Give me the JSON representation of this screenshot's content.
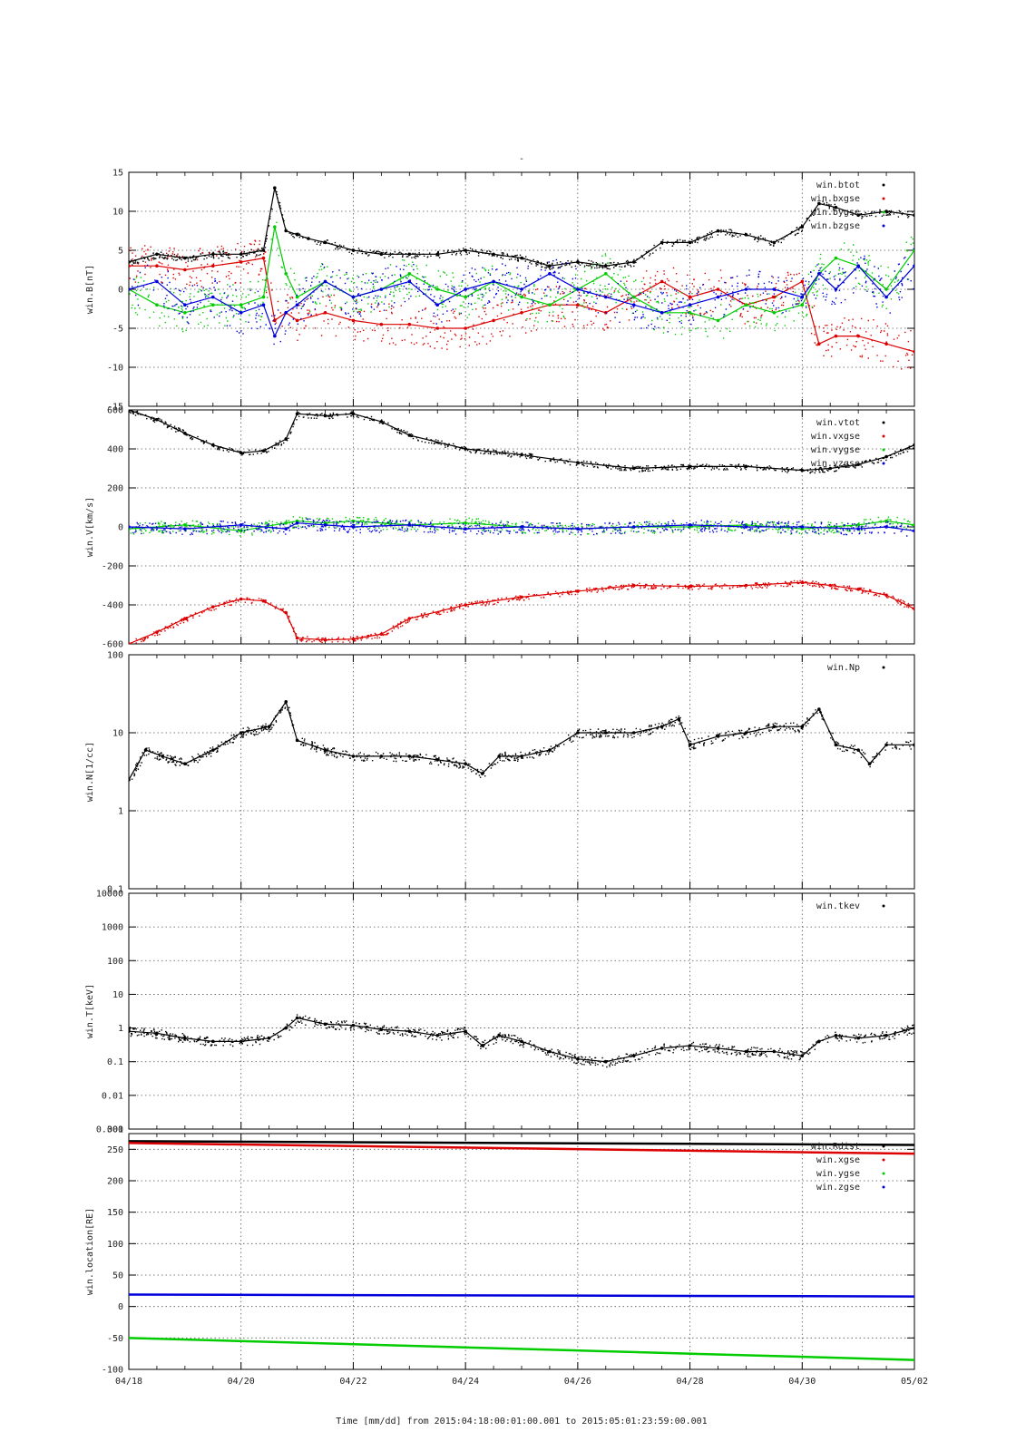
{
  "title": "-",
  "x_axis": {
    "tick_labels": [
      "04/18",
      "04/20",
      "04/22",
      "04/24",
      "04/26",
      "04/28",
      "04/30",
      "05/02"
    ],
    "tick_days": [
      0,
      2,
      4,
      6,
      8,
      10,
      12,
      14
    ],
    "title": "Time [mm/dd]  from 2015:04:18:00:01:00.001  to  2015:05:01:23:59:00.001"
  },
  "colors": {
    "black": "#000000",
    "red": "#dd0000",
    "green": "#00cc00",
    "blue": "#0000dd"
  },
  "chart_data": [
    {
      "type": "scatter",
      "ylabel": "win.B[nT]",
      "ylim": [
        -15,
        15
      ],
      "yscale": "linear",
      "yticks": [
        -15,
        -10,
        -5,
        0,
        5,
        10,
        15
      ],
      "ytick_labels": [
        "-15",
        "-10",
        "-5",
        "0",
        "5",
        "10",
        "15"
      ],
      "grid": true,
      "legend_position": "top-right",
      "x_unit": "days since 04/18",
      "series": [
        {
          "name": "win.btot",
          "color": "black",
          "x": [
            0,
            0.5,
            1,
            1.5,
            2,
            2.4,
            2.6,
            2.8,
            3,
            3.2,
            3.5,
            4,
            4.5,
            5,
            5.5,
            6,
            6.5,
            7,
            7.5,
            8,
            8.5,
            9,
            9.5,
            10,
            10.5,
            11,
            11.5,
            12,
            12.3,
            12.6,
            13,
            13.5,
            14
          ],
          "y": [
            3.5,
            4.5,
            4,
            4.5,
            4.5,
            5,
            13,
            7.5,
            7,
            6.5,
            6,
            5,
            4.5,
            4.5,
            4.5,
            5,
            4.5,
            4,
            3,
            3.5,
            3,
            3.5,
            6,
            6,
            7.5,
            7,
            6,
            8,
            11,
            10.5,
            9.5,
            10,
            9.5
          ]
        },
        {
          "name": "win.bxgse",
          "color": "red",
          "x": [
            0,
            0.5,
            1,
            1.5,
            2,
            2.4,
            2.6,
            2.8,
            3,
            3.5,
            4,
            4.5,
            5,
            5.5,
            6,
            6.5,
            7,
            7.5,
            8,
            8.5,
            9,
            9.5,
            10,
            10.5,
            11,
            11.5,
            12,
            12.3,
            12.6,
            13,
            13.5,
            14
          ],
          "y": [
            3,
            3,
            2.5,
            3,
            3.5,
            4,
            -4,
            -3,
            -4,
            -3,
            -4,
            -4.5,
            -4.5,
            -5,
            -5,
            -4,
            -3,
            -2,
            -2,
            -3,
            -1,
            1,
            -1,
            0,
            -2,
            -1,
            1,
            -7,
            -6,
            -6,
            -7,
            -8
          ]
        },
        {
          "name": "win.bygse",
          "color": "green",
          "x": [
            0,
            0.5,
            1,
            1.5,
            2,
            2.4,
            2.6,
            2.8,
            3,
            3.5,
            4,
            4.5,
            5,
            5.5,
            6,
            6.5,
            7,
            7.5,
            8,
            8.5,
            9,
            9.5,
            10,
            10.5,
            11,
            11.5,
            12,
            12.3,
            12.6,
            13,
            13.5,
            14
          ],
          "y": [
            0,
            -2,
            -3,
            -2,
            -2,
            -1,
            8,
            2,
            -1,
            1,
            -1,
            0,
            2,
            0,
            -1,
            1,
            -1,
            -2,
            0,
            2,
            -1,
            -3,
            -3,
            -4,
            -2,
            -3,
            -2,
            2,
            4,
            3,
            0,
            5
          ]
        },
        {
          "name": "win.bzgse",
          "color": "blue",
          "x": [
            0,
            0.5,
            1,
            1.5,
            2,
            2.4,
            2.6,
            2.8,
            3,
            3.5,
            4,
            4.5,
            5,
            5.5,
            6,
            6.5,
            7,
            7.5,
            8,
            8.5,
            9,
            9.5,
            10,
            10.5,
            11,
            11.5,
            12,
            12.3,
            12.6,
            13,
            13.5,
            14
          ],
          "y": [
            0,
            1,
            -2,
            -1,
            -3,
            -2,
            -6,
            -3,
            -2,
            1,
            -1,
            0,
            1,
            -2,
            0,
            1,
            0,
            2,
            0,
            -1,
            -2,
            -3,
            -2,
            -1,
            0,
            0,
            -1,
            2,
            0,
            3,
            -1,
            3
          ]
        }
      ]
    },
    {
      "type": "scatter",
      "ylabel": "win.V[km/s]",
      "ylim": [
        -600,
        600
      ],
      "yscale": "linear",
      "yticks": [
        -600,
        -400,
        -200,
        0,
        200,
        400,
        600
      ],
      "ytick_labels": [
        "-600",
        "-400",
        "-200",
        "0",
        "200",
        "400",
        "600"
      ],
      "grid": true,
      "legend_position": "top-right",
      "x_unit": "days since 04/18",
      "series": [
        {
          "name": "win.vtot",
          "color": "black",
          "x": [
            0,
            0.5,
            1,
            1.5,
            2,
            2.4,
            2.8,
            3,
            3.5,
            4,
            4.5,
            5,
            6,
            7,
            8,
            9,
            10,
            11,
            12,
            12.5,
            13,
            13.5,
            14
          ],
          "y": [
            600,
            550,
            480,
            420,
            380,
            390,
            450,
            580,
            570,
            580,
            540,
            470,
            400,
            370,
            330,
            300,
            310,
            310,
            290,
            300,
            320,
            360,
            420
          ]
        },
        {
          "name": "win.vxgse",
          "color": "red",
          "x": [
            0,
            0.5,
            1,
            1.5,
            2,
            2.4,
            2.8,
            3,
            3.5,
            4,
            4.5,
            5,
            6,
            7,
            8,
            9,
            10,
            11,
            12,
            12.5,
            13,
            13.5,
            14
          ],
          "y": [
            -600,
            -540,
            -470,
            -410,
            -370,
            -380,
            -440,
            -570,
            -580,
            -575,
            -550,
            -470,
            -400,
            -360,
            -330,
            -300,
            -305,
            -300,
            -285,
            -300,
            -320,
            -350,
            -420
          ]
        },
        {
          "name": "win.vygse",
          "color": "green",
          "x": [
            0,
            1,
            2,
            2.8,
            3,
            3.5,
            4,
            5,
            6,
            7,
            8,
            9,
            10,
            11,
            12,
            13,
            13.5,
            14
          ],
          "y": [
            -10,
            10,
            -20,
            20,
            30,
            20,
            30,
            10,
            20,
            0,
            -10,
            0,
            0,
            10,
            -10,
            10,
            30,
            10
          ]
        },
        {
          "name": "win.vzgse",
          "color": "blue",
          "x": [
            0,
            1,
            2,
            2.8,
            3,
            3.5,
            4,
            5,
            6,
            7,
            8,
            9,
            10,
            11,
            12,
            13,
            13.5,
            14
          ],
          "y": [
            0,
            -10,
            10,
            -10,
            20,
            10,
            0,
            10,
            -10,
            0,
            -10,
            0,
            10,
            0,
            0,
            -10,
            0,
            -20
          ]
        }
      ]
    },
    {
      "type": "scatter",
      "ylabel": "win.N[1/cc]",
      "ylim": [
        0.1,
        100
      ],
      "yscale": "log",
      "yticks": [
        0.1,
        1,
        10,
        100
      ],
      "ytick_labels": [
        "0.1",
        "1",
        "10",
        "100"
      ],
      "grid": true,
      "legend_position": "top-right",
      "x_unit": "days since 04/18",
      "series": [
        {
          "name": "win.Np",
          "color": "black",
          "x": [
            0,
            0.3,
            0.6,
            1,
            1.5,
            2,
            2.5,
            2.8,
            3,
            3.5,
            4,
            4.5,
            5,
            5.5,
            6,
            6.3,
            6.6,
            7,
            7.5,
            8,
            8.5,
            9,
            9.5,
            9.8,
            10,
            10.5,
            11,
            11.5,
            12,
            12.3,
            12.6,
            13,
            13.2,
            13.5,
            14
          ],
          "y": [
            2.5,
            6,
            5,
            4,
            6,
            10,
            12,
            25,
            8,
            6,
            5,
            5,
            5,
            4.5,
            4,
            3,
            5,
            5,
            6,
            10,
            10,
            10,
            12,
            15,
            7,
            9,
            10,
            12,
            12,
            20,
            7,
            6,
            4,
            7,
            7
          ]
        }
      ]
    },
    {
      "type": "scatter",
      "ylabel": "win.T[keV]",
      "ylim": [
        0.001,
        10000
      ],
      "yscale": "log",
      "yticks": [
        0.001,
        0.01,
        0.1,
        1,
        10,
        100,
        1000,
        10000
      ],
      "ytick_labels": [
        "0.001",
        "0.01",
        "0.1",
        "1",
        "10",
        "100",
        "1000",
        "10000"
      ],
      "ytick_label_extra": "300",
      "grid": true,
      "legend_position": "top-right",
      "x_unit": "days since 04/18",
      "series": [
        {
          "name": "win.tkev",
          "color": "black",
          "x": [
            0,
            0.5,
            1,
            1.5,
            2,
            2.5,
            2.8,
            3,
            3.5,
            4,
            4.5,
            5,
            5.5,
            6,
            6.3,
            6.6,
            7,
            7.5,
            8,
            8.5,
            9,
            9.5,
            10,
            10.5,
            11,
            11.5,
            12,
            12.3,
            12.6,
            13,
            13.5,
            14
          ],
          "y": [
            0.8,
            0.7,
            0.5,
            0.4,
            0.4,
            0.5,
            1,
            2,
            1.3,
            1.2,
            0.9,
            0.8,
            0.6,
            0.8,
            0.3,
            0.6,
            0.4,
            0.2,
            0.12,
            0.1,
            0.15,
            0.25,
            0.3,
            0.25,
            0.2,
            0.2,
            0.15,
            0.4,
            0.6,
            0.5,
            0.6,
            1
          ]
        }
      ]
    },
    {
      "type": "line",
      "ylabel": "win.location[RE]",
      "ylim": [
        -100,
        275
      ],
      "yscale": "linear",
      "yticks": [
        -100,
        -50,
        0,
        50,
        100,
        150,
        200,
        250
      ],
      "ytick_labels": [
        "-100",
        "-50",
        "0",
        "50",
        "100",
        "150",
        "200",
        "250"
      ],
      "grid": true,
      "legend_position": "top-right",
      "x_unit": "days since 04/18",
      "series": [
        {
          "name": "win.Rdist",
          "color": "black",
          "x": [
            0,
            14
          ],
          "y": [
            263,
            257
          ]
        },
        {
          "name": "win.xgse",
          "color": "red",
          "x": [
            0,
            14
          ],
          "y": [
            260,
            243
          ]
        },
        {
          "name": "win.ygse",
          "color": "green",
          "x": [
            0,
            14
          ],
          "y": [
            -50,
            -85
          ]
        },
        {
          "name": "win.zgse",
          "color": "blue",
          "x": [
            0,
            14
          ],
          "y": [
            19,
            16
          ]
        }
      ]
    }
  ]
}
